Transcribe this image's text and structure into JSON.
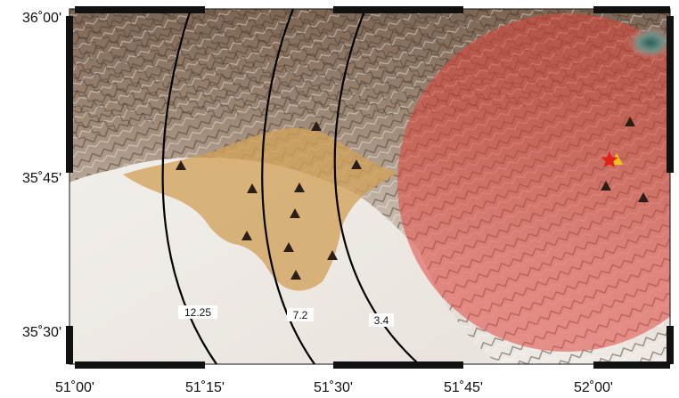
{
  "map": {
    "extent": {
      "lon_min": "51°00'",
      "lon_max": "52°10'",
      "lat_min": "35°27'",
      "lat_max": "36°00'"
    },
    "x_ticks": [
      "51˚00'",
      "51˚15'",
      "51˚30'",
      "51˚45'",
      "52˚00'"
    ],
    "y_ticks": [
      "36˚00'",
      "35˚45'",
      "35˚30'"
    ],
    "distance_contours": [
      {
        "label": "12.25"
      },
      {
        "label": "7.2"
      },
      {
        "label": "3.4"
      }
    ],
    "stations": [
      {
        "lon": "51°12.5'",
        "lat": "35°46.0'",
        "in_zone": false
      },
      {
        "lon": "51°20.5'",
        "lat": "35°43.5'",
        "in_zone": false
      },
      {
        "lon": "51°26.0'",
        "lat": "35°43.6'",
        "in_zone": false
      },
      {
        "lon": "51°25.8'",
        "lat": "35°41.2'",
        "in_zone": false
      },
      {
        "lon": "51°20.0'",
        "lat": "35°38.5'",
        "in_zone": false
      },
      {
        "lon": "51°25.0'",
        "lat": "35°37.3'",
        "in_zone": false
      },
      {
        "lon": "51°29.8'",
        "lat": "35°36.4'",
        "in_zone": false
      },
      {
        "lon": "51°26.0'",
        "lat": "35°34.7'",
        "in_zone": false
      },
      {
        "lon": "51°33.0'",
        "lat": "35°46.2'",
        "in_zone": false
      },
      {
        "lon": "51°28.0'",
        "lat": "35°50.4'",
        "in_zone": false
      },
      {
        "lon": "52°03.5'",
        "lat": "35°51.5'",
        "in_zone": true
      },
      {
        "lon": "52°01.0'",
        "lat": "35°44.0'",
        "in_zone": true
      },
      {
        "lon": "52°05.5'",
        "lat": "35°42.8'",
        "in_zone": true
      }
    ],
    "epicenter": {
      "lon": "52°01.5'",
      "lat": "35°46.8'"
    },
    "colors": {
      "circle_fill": "#e0463e",
      "city_fill": "#d1a15a",
      "contour_stroke": "#000000",
      "station_fill": "#2b1e17",
      "epicenter_fill": "#e32119",
      "frame": "#111111"
    }
  }
}
